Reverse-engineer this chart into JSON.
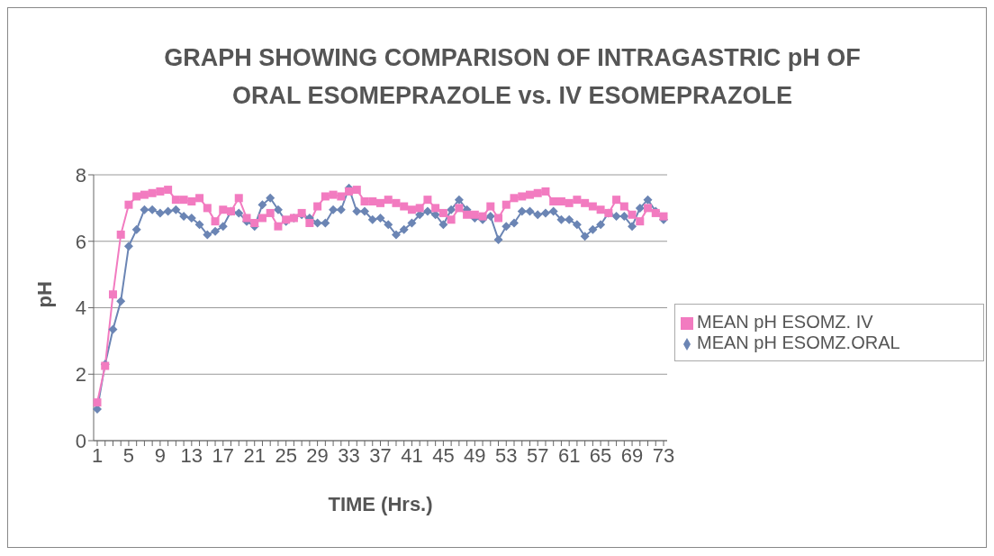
{
  "chart_data": {
    "type": "line",
    "title": "GRAPH SHOWING  COMPARISON OF INTRAGASTRIC pH OF\nORAL ESOMEPRAZOLE vs. IV ESOMEPRAZOLE",
    "xlabel": "TIME (Hrs.)",
    "ylabel": "pH",
    "categories": [
      "1",
      null,
      null,
      null,
      "5",
      null,
      null,
      null,
      "9",
      null,
      null,
      null,
      "13",
      null,
      null,
      null,
      "17",
      null,
      null,
      null,
      "21",
      null,
      null,
      null,
      "25",
      null,
      null,
      null,
      "29",
      null,
      null,
      null,
      "33",
      null,
      null,
      null,
      "37",
      null,
      null,
      null,
      "41",
      null,
      null,
      null,
      "45",
      null,
      null,
      null,
      "49",
      null,
      null,
      null,
      "53",
      null,
      null,
      null,
      "57",
      null,
      null,
      null,
      "61",
      null,
      null,
      null,
      "65",
      null,
      null,
      null,
      "69",
      null,
      null,
      null,
      "73"
    ],
    "series": [
      {
        "name": "MEAN pH ESOMZ.ORAL",
        "color": "#6b85b4",
        "marker": "diamond",
        "values": [
          0.95,
          2.3,
          3.35,
          4.2,
          5.85,
          6.35,
          6.95,
          6.95,
          6.85,
          6.9,
          6.95,
          6.75,
          6.7,
          6.5,
          6.2,
          6.3,
          6.45,
          6.9,
          6.85,
          6.6,
          6.45,
          7.1,
          7.3,
          6.95,
          6.6,
          6.7,
          6.8,
          6.7,
          6.55,
          6.55,
          6.95,
          6.95,
          7.6,
          6.9,
          6.9,
          6.65,
          6.7,
          6.5,
          6.2,
          6.35,
          6.55,
          6.8,
          6.9,
          6.8,
          6.5,
          6.95,
          7.25,
          6.95,
          6.7,
          6.65,
          6.75,
          6.05,
          6.45,
          6.55,
          6.9,
          6.9,
          6.8,
          6.85,
          6.9,
          6.65,
          6.65,
          6.5,
          6.15,
          6.35,
          6.5,
          6.85,
          6.75,
          6.75,
          6.45,
          7.0,
          7.25,
          6.9,
          6.65
        ]
      },
      {
        "name": "MEAN pH ESOMZ. IV",
        "color": "#f27bc0",
        "marker": "square",
        "values": [
          1.15,
          2.25,
          4.4,
          6.2,
          7.1,
          7.35,
          7.4,
          7.45,
          7.5,
          7.55,
          7.25,
          7.25,
          7.2,
          7.3,
          7.0,
          6.6,
          6.95,
          6.9,
          7.3,
          6.7,
          6.55,
          6.7,
          6.85,
          6.45,
          6.65,
          6.7,
          6.85,
          6.55,
          7.05,
          7.35,
          7.4,
          7.35,
          7.5,
          7.55,
          7.2,
          7.2,
          7.15,
          7.25,
          7.15,
          7.05,
          6.95,
          7.0,
          7.25,
          7.0,
          6.85,
          6.65,
          7.0,
          6.8,
          6.8,
          6.75,
          7.05,
          6.7,
          7.1,
          7.3,
          7.35,
          7.4,
          7.45,
          7.5,
          7.2,
          7.2,
          7.15,
          7.25,
          7.15,
          7.05,
          6.95,
          6.85,
          7.25,
          7.05,
          6.8,
          6.6,
          7.0,
          6.85,
          6.75
        ]
      }
    ],
    "ylim": [
      0,
      8
    ],
    "yticks": [
      0,
      2,
      4,
      6,
      8
    ],
    "grid": "y",
    "legend": "right",
    "line_style": "solid"
  }
}
